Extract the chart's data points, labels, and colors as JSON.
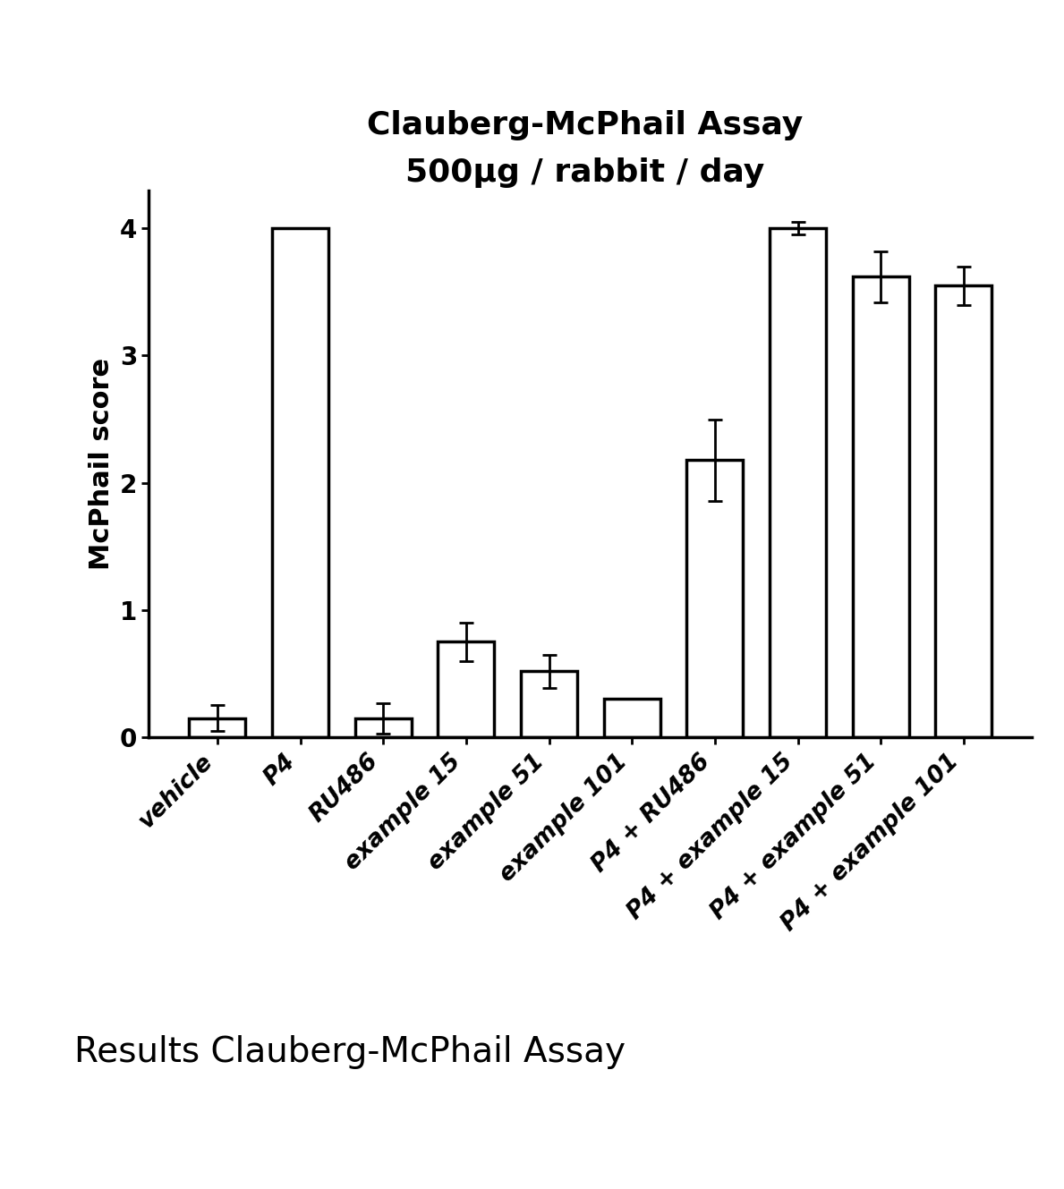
{
  "title_line1": "Clauberg-McPhail Assay",
  "title_line2": "500μg / rabbit / day",
  "ylabel": "McPhail score",
  "categories": [
    "vehicle",
    "P4",
    "RU486",
    "example 15",
    "example 51",
    "example 101",
    "P4 + RU486",
    "P4 + example 15",
    "P4 + example 51",
    "P4 + example 101"
  ],
  "values": [
    0.15,
    4.0,
    0.15,
    0.75,
    0.52,
    0.3,
    2.18,
    4.0,
    3.62,
    3.55
  ],
  "errors": [
    0.1,
    0.0,
    0.12,
    0.15,
    0.13,
    0.0,
    0.32,
    0.05,
    0.2,
    0.15
  ],
  "ylim": [
    0,
    4.3
  ],
  "yticks": [
    0,
    1,
    2,
    3,
    4
  ],
  "bar_color": "white",
  "bar_edgecolor": "black",
  "bar_linewidth": 2.5,
  "error_capsize": 6,
  "error_linewidth": 2.0,
  "error_color": "black",
  "background_color": "white",
  "title_fontsize": 26,
  "ylabel_fontsize": 22,
  "ytick_fontsize": 20,
  "xlabel_fontsize": 19,
  "caption": "Results Clauberg-McPhail Assay",
  "caption_fontsize": 28
}
